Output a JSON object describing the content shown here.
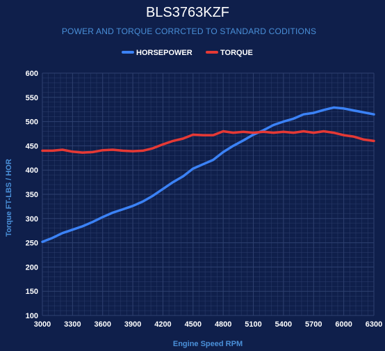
{
  "chart_data": {
    "type": "line",
    "title": "BLS3763KZF",
    "subtitle": "POWER AND TORQUE CORRCTED TO STANDARD CODITIONS",
    "xlabel": "Engine Speed RPM",
    "ylabel": "Torque FT-LBS / HOR",
    "xlim": [
      3000,
      6300
    ],
    "ylim": [
      100,
      600
    ],
    "x_ticks": [
      "3000",
      "3300",
      "3600",
      "3900",
      "4200",
      "4500",
      "4800",
      "5100",
      "5400",
      "5700",
      "6000",
      "6300"
    ],
    "y_ticks": [
      "100",
      "150",
      "200",
      "250",
      "300",
      "350",
      "400",
      "450",
      "500",
      "550",
      "600"
    ],
    "legend_position": "top-center",
    "grid": true,
    "series": [
      {
        "name": "HORSEPOWER",
        "color": "#3b82f6",
        "x": [
          3000,
          3100,
          3200,
          3300,
          3400,
          3500,
          3600,
          3700,
          3800,
          3900,
          4000,
          4100,
          4200,
          4300,
          4400,
          4500,
          4600,
          4700,
          4800,
          4900,
          5000,
          5100,
          5200,
          5300,
          5400,
          5500,
          5600,
          5700,
          5800,
          5900,
          6000,
          6100,
          6200,
          6300
        ],
        "y": [
          252,
          260,
          270,
          277,
          284,
          293,
          303,
          312,
          319,
          326,
          335,
          347,
          361,
          375,
          387,
          403,
          412,
          421,
          437,
          450,
          461,
          473,
          482,
          493,
          500,
          506,
          515,
          518,
          524,
          529,
          527,
          523,
          519,
          515
        ]
      },
      {
        "name": "TORQUE",
        "color": "#e53935",
        "x": [
          3000,
          3100,
          3200,
          3300,
          3400,
          3500,
          3600,
          3700,
          3800,
          3900,
          4000,
          4100,
          4200,
          4300,
          4400,
          4500,
          4600,
          4700,
          4800,
          4900,
          5000,
          5100,
          5200,
          5300,
          5400,
          5500,
          5600,
          5700,
          5800,
          5900,
          6000,
          6100,
          6200,
          6300
        ],
        "y": [
          440,
          440,
          442,
          438,
          436,
          437,
          441,
          442,
          440,
          439,
          440,
          445,
          453,
          460,
          465,
          473,
          472,
          472,
          480,
          477,
          479,
          477,
          479,
          477,
          479,
          477,
          480,
          477,
          480,
          477,
          472,
          469,
          463,
          460
        ]
      }
    ]
  },
  "colors": {
    "background": "#0f1f4b",
    "grid": "#2f4170",
    "accent": "#4a90d9"
  }
}
